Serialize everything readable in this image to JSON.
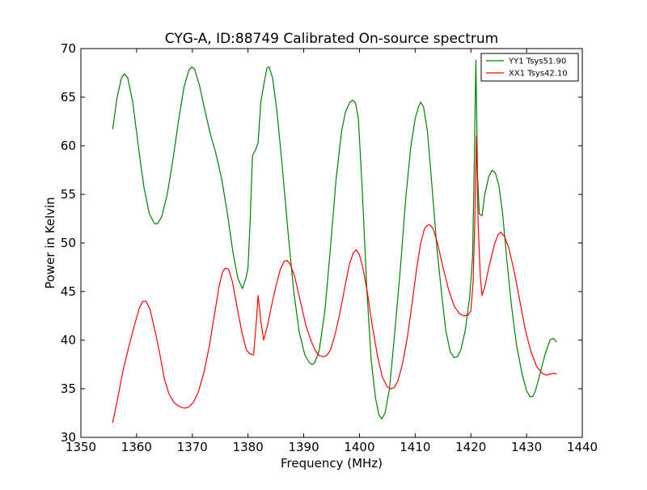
{
  "chart_data": {
    "type": "line",
    "title": "CYG-A, ID:88749 Calibrated On-source spectrum",
    "xlabel": "Frequency (MHz)",
    "ylabel": "Power in Kelvin",
    "xlim": [
      1350,
      1440
    ],
    "ylim": [
      30,
      70
    ],
    "xticks": [
      "1350",
      "1360",
      "1370",
      "1380",
      "1390",
      "1400",
      "1410",
      "1420",
      "1430",
      "1440"
    ],
    "yticks": [
      "30",
      "35",
      "40",
      "45",
      "50",
      "55",
      "60",
      "65",
      "70"
    ],
    "grid": false,
    "legend_position": "top-right",
    "series": [
      {
        "name": "YY1 Tsys51.90",
        "color": "#008000",
        "points": [
          [
            1355.7,
            61.7
          ],
          [
            1356.5,
            65.0
          ],
          [
            1357.3,
            67.0
          ],
          [
            1357.8,
            67.4
          ],
          [
            1358.4,
            67.0
          ],
          [
            1359.3,
            64.5
          ],
          [
            1360.3,
            60.0
          ],
          [
            1361.3,
            55.8
          ],
          [
            1362.3,
            53.0
          ],
          [
            1363.2,
            52.0
          ],
          [
            1363.8,
            52.0
          ],
          [
            1364.5,
            52.7
          ],
          [
            1365.5,
            55.0
          ],
          [
            1366.5,
            58.5
          ],
          [
            1367.5,
            62.5
          ],
          [
            1368.5,
            66.0
          ],
          [
            1369.4,
            67.8
          ],
          [
            1369.9,
            68.1
          ],
          [
            1370.4,
            67.9
          ],
          [
            1371.3,
            66.2
          ],
          [
            1372.2,
            63.8
          ],
          [
            1373.2,
            61.3
          ],
          [
            1374.2,
            59.3
          ],
          [
            1375.3,
            56.5
          ],
          [
            1376.3,
            53.0
          ],
          [
            1377.3,
            49.0
          ],
          [
            1378.2,
            46.3
          ],
          [
            1379.0,
            45.3
          ],
          [
            1379.6,
            46.3
          ],
          [
            1380.0,
            47.5
          ],
          [
            1380.4,
            52.5
          ],
          [
            1380.8,
            59.0
          ],
          [
            1381.3,
            59.5
          ],
          [
            1381.8,
            60.3
          ],
          [
            1382.3,
            64.5
          ],
          [
            1382.9,
            66.5
          ],
          [
            1383.4,
            68.0
          ],
          [
            1383.8,
            68.1
          ],
          [
            1384.4,
            67.0
          ],
          [
            1385.2,
            63.5
          ],
          [
            1386.2,
            57.5
          ],
          [
            1387.2,
            51.0
          ],
          [
            1388.2,
            45.0
          ],
          [
            1389.2,
            40.8
          ],
          [
            1390.2,
            38.5
          ],
          [
            1391.0,
            37.7
          ],
          [
            1391.5,
            37.5
          ],
          [
            1392.0,
            37.7
          ],
          [
            1392.8,
            39.0
          ],
          [
            1393.8,
            43.0
          ],
          [
            1394.8,
            49.5
          ],
          [
            1395.8,
            56.5
          ],
          [
            1396.8,
            61.5
          ],
          [
            1397.5,
            63.5
          ],
          [
            1398.3,
            64.5
          ],
          [
            1398.8,
            64.7
          ],
          [
            1399.3,
            64.4
          ],
          [
            1399.8,
            62.8
          ],
          [
            1400.5,
            55.5
          ],
          [
            1401.3,
            45.5
          ],
          [
            1402.1,
            38.0
          ],
          [
            1402.9,
            34.0
          ],
          [
            1403.5,
            32.3
          ],
          [
            1404.0,
            31.9
          ],
          [
            1404.6,
            32.5
          ],
          [
            1405.4,
            35.0
          ],
          [
            1406.3,
            40.5
          ],
          [
            1407.3,
            47.0
          ],
          [
            1408.3,
            54.5
          ],
          [
            1409.2,
            59.8
          ],
          [
            1410.0,
            62.8
          ],
          [
            1410.6,
            64.0
          ],
          [
            1411.0,
            64.5
          ],
          [
            1411.5,
            64.0
          ],
          [
            1412.2,
            61.5
          ],
          [
            1413.0,
            56.0
          ],
          [
            1413.9,
            49.5
          ],
          [
            1414.8,
            44.5
          ],
          [
            1415.5,
            41.0
          ],
          [
            1416.3,
            38.8
          ],
          [
            1417.0,
            38.2
          ],
          [
            1417.6,
            38.3
          ],
          [
            1418.2,
            39.0
          ],
          [
            1419.0,
            41.0
          ],
          [
            1419.8,
            44.5
          ],
          [
            1420.3,
            48.5
          ],
          [
            1420.6,
            58.0
          ],
          [
            1420.9,
            68.8
          ],
          [
            1421.2,
            57.0
          ],
          [
            1421.5,
            53.0
          ],
          [
            1422.0,
            52.8
          ],
          [
            1422.5,
            55.0
          ],
          [
            1423.2,
            56.8
          ],
          [
            1423.8,
            57.5
          ],
          [
            1424.4,
            57.2
          ],
          [
            1425.0,
            56.0
          ],
          [
            1425.7,
            53.0
          ],
          [
            1426.5,
            48.0
          ],
          [
            1427.3,
            43.5
          ],
          [
            1428.2,
            39.5
          ],
          [
            1429.2,
            36.5
          ],
          [
            1430.0,
            34.8
          ],
          [
            1430.6,
            34.2
          ],
          [
            1431.1,
            34.2
          ],
          [
            1431.6,
            34.8
          ],
          [
            1432.4,
            36.5
          ],
          [
            1433.3,
            38.5
          ],
          [
            1434.2,
            40.0
          ],
          [
            1434.8,
            40.2
          ],
          [
            1435.4,
            39.8
          ]
        ]
      },
      {
        "name": "XX1 Tsys42.10",
        "color": "#ff0000",
        "points": [
          [
            1355.7,
            31.5
          ],
          [
            1356.6,
            34.0
          ],
          [
            1357.6,
            37.0
          ],
          [
            1358.6,
            39.3
          ],
          [
            1359.6,
            41.5
          ],
          [
            1360.5,
            43.3
          ],
          [
            1361.1,
            44.0
          ],
          [
            1361.7,
            44.0
          ],
          [
            1362.4,
            43.2
          ],
          [
            1363.3,
            41.0
          ],
          [
            1364.2,
            38.5
          ],
          [
            1365.0,
            36.0
          ],
          [
            1365.8,
            34.5
          ],
          [
            1366.7,
            33.6
          ],
          [
            1367.6,
            33.2
          ],
          [
            1368.5,
            33.0
          ],
          [
            1369.3,
            33.1
          ],
          [
            1370.2,
            33.6
          ],
          [
            1371.1,
            34.7
          ],
          [
            1372.1,
            36.7
          ],
          [
            1373.1,
            39.5
          ],
          [
            1374.0,
            42.7
          ],
          [
            1374.8,
            45.5
          ],
          [
            1375.4,
            47.0
          ],
          [
            1375.9,
            47.4
          ],
          [
            1376.5,
            47.3
          ],
          [
            1377.2,
            46.0
          ],
          [
            1378.0,
            43.5
          ],
          [
            1378.9,
            40.8
          ],
          [
            1379.7,
            39.0
          ],
          [
            1380.3,
            38.6
          ],
          [
            1381.0,
            38.5
          ],
          [
            1381.5,
            42.0
          ],
          [
            1381.8,
            44.6
          ],
          [
            1382.3,
            42.0
          ],
          [
            1382.8,
            40.0
          ],
          [
            1383.5,
            41.5
          ],
          [
            1384.2,
            43.5
          ],
          [
            1385.0,
            45.5
          ],
          [
            1385.8,
            47.3
          ],
          [
            1386.5,
            48.1
          ],
          [
            1387.0,
            48.2
          ],
          [
            1387.6,
            47.8
          ],
          [
            1388.4,
            46.5
          ],
          [
            1389.4,
            44.0
          ],
          [
            1390.4,
            41.5
          ],
          [
            1391.4,
            39.8
          ],
          [
            1392.2,
            38.8
          ],
          [
            1392.8,
            38.4
          ],
          [
            1393.5,
            38.3
          ],
          [
            1394.1,
            38.4
          ],
          [
            1394.8,
            39.0
          ],
          [
            1395.6,
            40.5
          ],
          [
            1396.5,
            42.8
          ],
          [
            1397.4,
            45.5
          ],
          [
            1398.2,
            47.8
          ],
          [
            1398.9,
            49.0
          ],
          [
            1399.4,
            49.3
          ],
          [
            1400.0,
            48.8
          ],
          [
            1400.6,
            47.5
          ],
          [
            1401.4,
            45.0
          ],
          [
            1402.3,
            41.5
          ],
          [
            1403.2,
            38.5
          ],
          [
            1404.1,
            36.2
          ],
          [
            1405.0,
            35.2
          ],
          [
            1405.6,
            35.0
          ],
          [
            1406.2,
            35.1
          ],
          [
            1406.9,
            35.8
          ],
          [
            1407.7,
            37.5
          ],
          [
            1408.6,
            40.3
          ],
          [
            1409.5,
            44.0
          ],
          [
            1410.3,
            47.5
          ],
          [
            1411.0,
            50.0
          ],
          [
            1411.7,
            51.5
          ],
          [
            1412.2,
            51.8
          ],
          [
            1412.6,
            51.9
          ],
          [
            1413.2,
            51.5
          ],
          [
            1414.0,
            50.0
          ],
          [
            1415.0,
            47.5
          ],
          [
            1416.0,
            45.2
          ],
          [
            1417.0,
            43.5
          ],
          [
            1418.0,
            42.7
          ],
          [
            1418.8,
            42.5
          ],
          [
            1419.5,
            42.6
          ],
          [
            1420.0,
            43.0
          ],
          [
            1420.4,
            46.0
          ],
          [
            1420.7,
            52.0
          ],
          [
            1421.0,
            61.0
          ],
          [
            1421.3,
            52.0
          ],
          [
            1421.7,
            46.5
          ],
          [
            1422.0,
            44.6
          ],
          [
            1422.5,
            45.5
          ],
          [
            1423.3,
            47.7
          ],
          [
            1424.2,
            49.8
          ],
          [
            1424.9,
            50.9
          ],
          [
            1425.4,
            51.1
          ],
          [
            1426.0,
            50.7
          ],
          [
            1426.8,
            49.5
          ],
          [
            1427.8,
            47.0
          ],
          [
            1428.8,
            44.0
          ],
          [
            1429.8,
            41.0
          ],
          [
            1430.8,
            38.8
          ],
          [
            1431.8,
            37.3
          ],
          [
            1432.8,
            36.6
          ],
          [
            1433.5,
            36.4
          ],
          [
            1434.2,
            36.5
          ],
          [
            1434.9,
            36.6
          ],
          [
            1435.4,
            36.5
          ]
        ]
      }
    ]
  }
}
